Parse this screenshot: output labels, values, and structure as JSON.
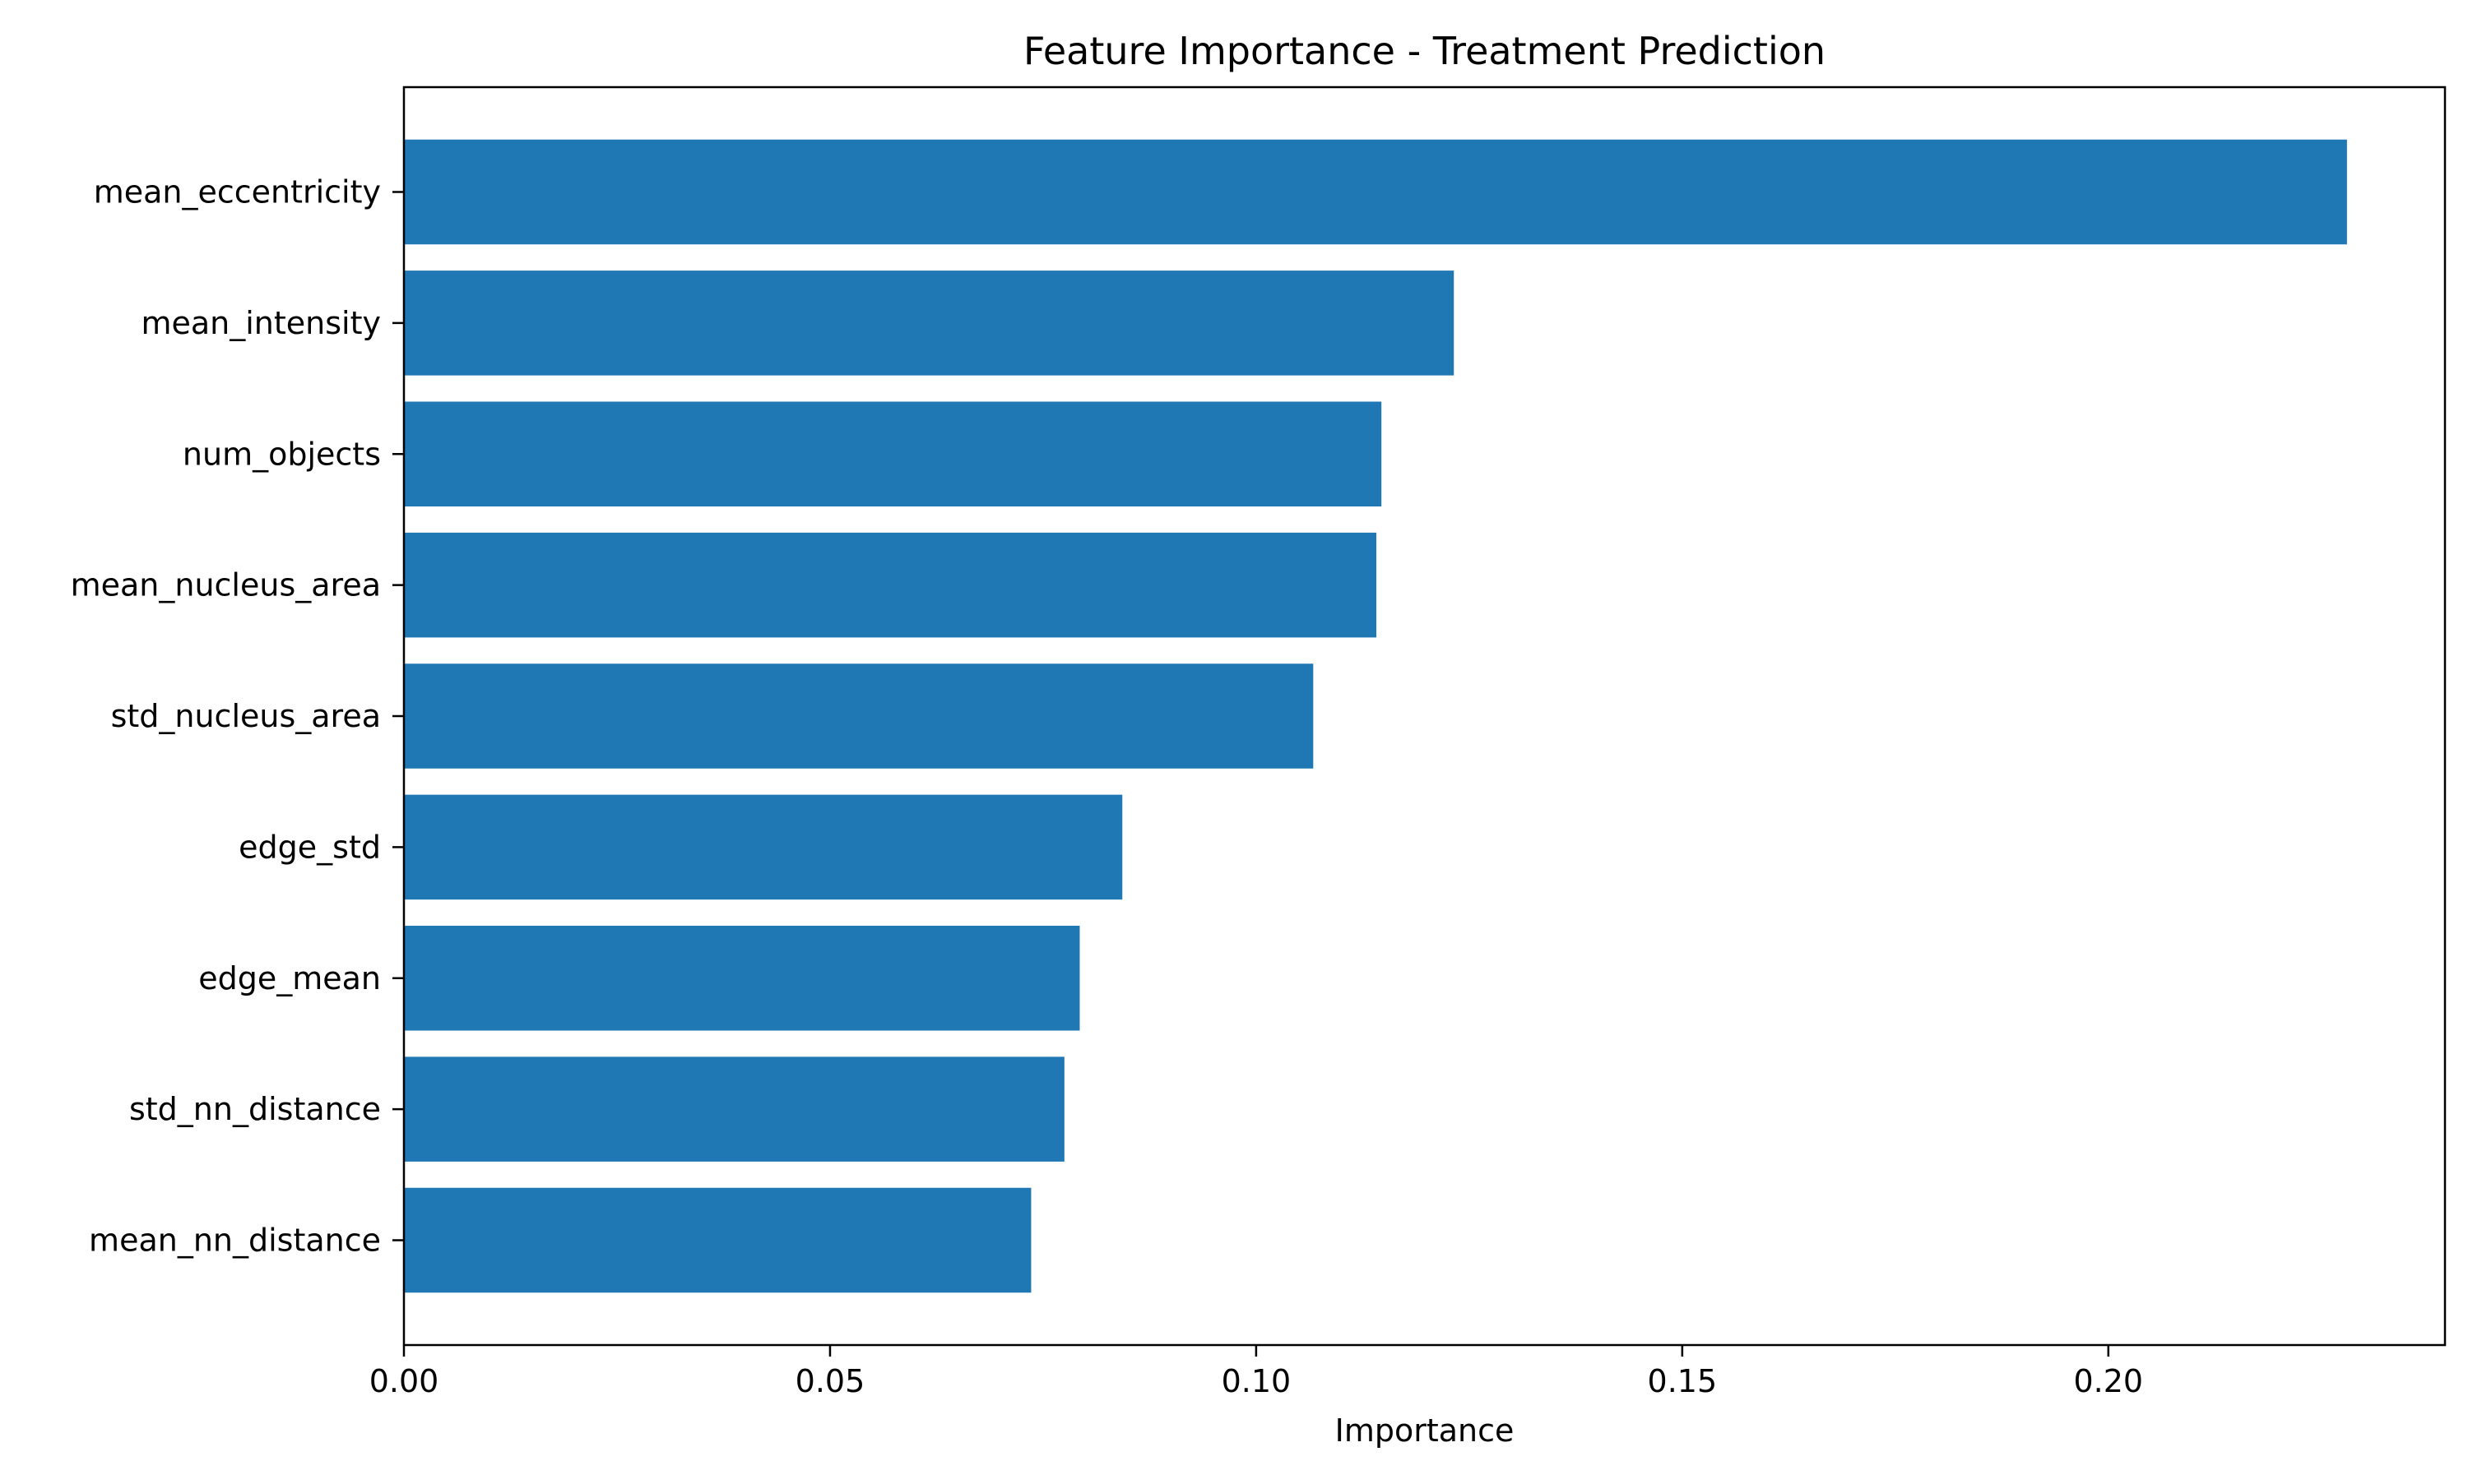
{
  "chart_data": {
    "type": "bar",
    "orientation": "horizontal",
    "title": "Feature Importance - Treatment Prediction",
    "xlabel": "Importance",
    "ylabel": "",
    "xlim": [
      0,
      0.2395
    ],
    "xticks": [
      0.0,
      0.05,
      0.1,
      0.15,
      0.2
    ],
    "xtick_labels": [
      "0.00",
      "0.05",
      "0.10",
      "0.15",
      "0.20"
    ],
    "grid": false,
    "legend": "none",
    "bar_color": "#1f77b4",
    "categories": [
      "mean_eccentricity",
      "mean_intensity",
      "num_objects",
      "mean_nucleus_area",
      "std_nucleus_area",
      "edge_std",
      "edge_mean",
      "std_nn_distance",
      "mean_nn_distance"
    ],
    "values": [
      0.228,
      0.1232,
      0.1147,
      0.1141,
      0.1067,
      0.0843,
      0.0793,
      0.0775,
      0.0736
    ]
  }
}
